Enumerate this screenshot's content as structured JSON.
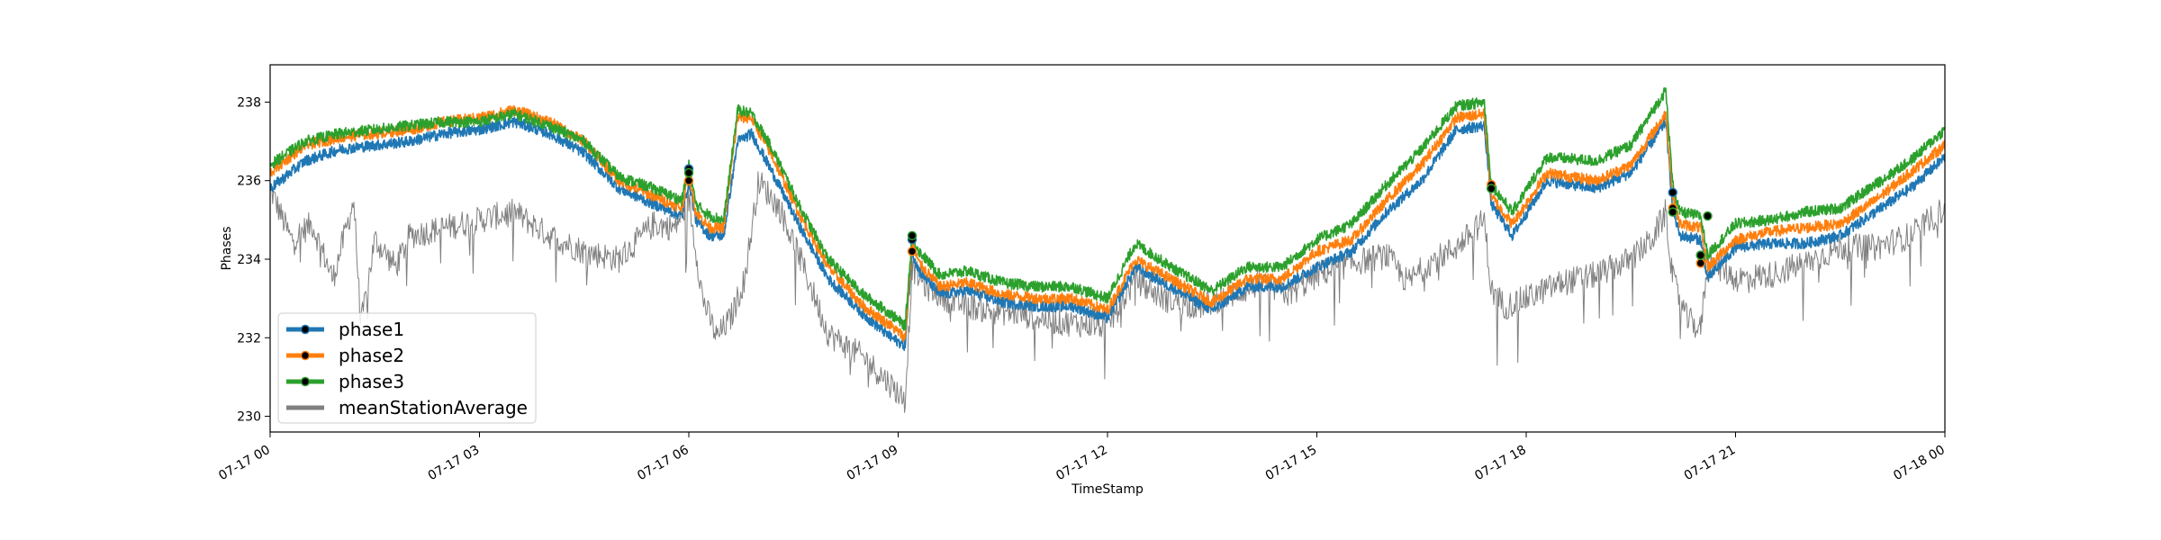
{
  "chart_data": {
    "type": "line",
    "title": "",
    "xlabel": "TimeStamp",
    "ylabel": "Phases",
    "xlim": [
      "07-17 00:00",
      "07-18 00:00"
    ],
    "ylim": [
      229.6,
      238.95
    ],
    "x_ticks": [
      "07-17 00",
      "07-17 03",
      "07-17 06",
      "07-17 09",
      "07-17 12",
      "07-17 15",
      "07-17 18",
      "07-17 21",
      "07-18 00"
    ],
    "y_ticks": [
      230,
      232,
      234,
      236,
      238
    ],
    "grid": false,
    "legend_position": "lower-left",
    "x_unit": "hours since 07-17 00:00",
    "series": [
      {
        "name": "phase1",
        "color": "#1f77b4",
        "x": [
          0,
          0.5,
          1,
          1.5,
          2,
          2.5,
          3,
          3.5,
          4,
          4.5,
          5,
          5.5,
          5.9,
          6,
          6.1,
          6.3,
          6.5,
          6.7,
          6.9,
          7.2,
          7.6,
          8,
          8.5,
          8.9,
          9.1,
          9.2,
          9.3,
          9.6,
          10,
          10.5,
          11,
          11.5,
          12,
          12.4,
          13,
          13.5,
          14,
          14.5,
          15,
          15.5,
          16,
          16.5,
          17,
          17.4,
          17.5,
          17.8,
          18.3,
          19,
          19.5,
          20,
          20.1,
          20.2,
          20.5,
          20.6,
          21,
          21.5,
          22,
          22.5,
          23,
          23.5,
          24
        ],
        "y": [
          235.8,
          236.5,
          236.8,
          236.9,
          237.0,
          237.2,
          237.3,
          237.5,
          237.2,
          236.7,
          235.8,
          235.4,
          235.1,
          236.0,
          235.0,
          234.6,
          234.6,
          237.0,
          237.2,
          236.2,
          234.8,
          233.5,
          232.6,
          232.0,
          231.8,
          234.2,
          233.7,
          233.1,
          233.2,
          232.9,
          232.8,
          232.8,
          232.5,
          233.8,
          233.2,
          232.7,
          233.3,
          233.3,
          233.8,
          234.2,
          235.2,
          236.0,
          237.3,
          237.4,
          235.4,
          234.6,
          236.0,
          235.8,
          236.2,
          237.5,
          235.3,
          234.6,
          234.5,
          233.5,
          234.3,
          234.4,
          234.4,
          234.6,
          235.2,
          235.8,
          236.6
        ],
        "markers": [
          [
            6.0,
            236.3
          ],
          [
            9.2,
            234.5
          ],
          [
            17.5,
            235.8
          ],
          [
            20.1,
            235.7
          ],
          [
            20.5,
            234.1
          ]
        ]
      },
      {
        "name": "phase2",
        "color": "#ff7f0e",
        "x": [
          0,
          0.5,
          1,
          1.5,
          2,
          2.5,
          3,
          3.5,
          4,
          4.5,
          5,
          5.5,
          5.9,
          6,
          6.1,
          6.3,
          6.5,
          6.7,
          6.9,
          7.2,
          7.6,
          8,
          8.5,
          8.9,
          9.1,
          9.2,
          9.3,
          9.6,
          10,
          10.5,
          11,
          11.5,
          12,
          12.4,
          13,
          13.5,
          14,
          14.5,
          15,
          15.5,
          16,
          16.5,
          17,
          17.4,
          17.5,
          17.8,
          18.3,
          19,
          19.5,
          20,
          20.1,
          20.2,
          20.5,
          20.6,
          21,
          21.5,
          22,
          22.5,
          23,
          23.5,
          24
        ],
        "y": [
          236.2,
          236.9,
          237.1,
          237.2,
          237.3,
          237.5,
          237.6,
          237.8,
          237.5,
          237.0,
          236.0,
          235.6,
          235.3,
          236.2,
          235.2,
          234.8,
          234.8,
          237.6,
          237.6,
          236.6,
          235.1,
          233.8,
          232.8,
          232.3,
          232.0,
          234.4,
          233.9,
          233.3,
          233.4,
          233.1,
          233.0,
          233.0,
          232.7,
          234.0,
          233.4,
          232.9,
          233.5,
          233.5,
          234.2,
          234.5,
          235.5,
          236.4,
          237.6,
          237.7,
          235.6,
          234.9,
          236.2,
          236.0,
          236.4,
          237.7,
          235.6,
          234.9,
          234.8,
          233.8,
          234.5,
          234.7,
          234.8,
          234.9,
          235.5,
          236.2,
          236.9
        ],
        "markers": [
          [
            6.0,
            236.0
          ],
          [
            9.2,
            234.2
          ],
          [
            17.5,
            235.9
          ],
          [
            20.1,
            235.3
          ],
          [
            20.5,
            233.9
          ]
        ]
      },
      {
        "name": "phase3",
        "color": "#2ca02c",
        "x": [
          0,
          0.5,
          1,
          1.5,
          2,
          2.5,
          3,
          3.5,
          4,
          4.5,
          5,
          5.5,
          5.9,
          6,
          6.1,
          6.3,
          6.5,
          6.7,
          6.9,
          7.2,
          7.6,
          8,
          8.5,
          8.9,
          9.1,
          9.2,
          9.3,
          9.6,
          10,
          10.5,
          11,
          11.5,
          12,
          12.4,
          13,
          13.5,
          14,
          14.5,
          15,
          15.5,
          16,
          16.5,
          17,
          17.4,
          17.5,
          17.8,
          18.3,
          19,
          19.5,
          20,
          20.1,
          20.2,
          20.5,
          20.6,
          21,
          21.5,
          22,
          22.5,
          23,
          23.5,
          24
        ],
        "y": [
          236.4,
          237.0,
          237.2,
          237.3,
          237.4,
          237.5,
          237.5,
          237.7,
          237.4,
          237.0,
          236.1,
          235.8,
          235.5,
          236.4,
          235.4,
          235.1,
          235.0,
          237.8,
          237.7,
          236.8,
          235.3,
          234.0,
          233.1,
          232.6,
          232.3,
          234.6,
          234.2,
          233.6,
          233.7,
          233.4,
          233.3,
          233.3,
          233.0,
          234.4,
          233.7,
          233.2,
          233.8,
          233.8,
          234.5,
          234.9,
          235.9,
          236.8,
          237.9,
          238.0,
          235.9,
          235.2,
          236.6,
          236.5,
          236.9,
          238.3,
          235.9,
          235.2,
          235.1,
          234.1,
          234.9,
          235.0,
          235.2,
          235.3,
          235.9,
          236.5,
          237.3
        ],
        "markers": [
          [
            6.0,
            236.2
          ],
          [
            9.2,
            234.6
          ],
          [
            17.5,
            235.8
          ],
          [
            20.1,
            235.2
          ],
          [
            20.5,
            234.1
          ],
          [
            20.6,
            235.1
          ]
        ]
      },
      {
        "name": "meanStationAverage",
        "color": "#808080",
        "x": [
          0,
          0.3,
          0.6,
          0.9,
          1.2,
          1.3,
          1.5,
          1.8,
          2,
          2.5,
          3,
          3.5,
          4,
          4.5,
          5,
          5.5,
          5.8,
          6,
          6.2,
          6.4,
          6.6,
          6.8,
          7,
          7.3,
          7.6,
          8,
          8.5,
          8.9,
          9.1,
          9.2,
          9.4,
          9.8,
          10.3,
          10.8,
          11.3,
          12,
          12.4,
          12.8,
          13.3,
          13.8,
          14.2,
          14.6,
          15,
          15.5,
          16,
          16.3,
          16.6,
          17,
          17.4,
          17.5,
          17.7,
          18,
          18.5,
          19,
          19.5,
          19.8,
          20,
          20.1,
          20.3,
          20.5,
          20.6,
          21,
          21.5,
          22,
          22.5,
          23,
          23.5,
          24
        ],
        "y": [
          235.8,
          234.5,
          234.9,
          233.5,
          235.5,
          232.3,
          234.5,
          233.8,
          234.6,
          234.8,
          235.0,
          235.2,
          234.6,
          234.2,
          234.0,
          234.9,
          234.8,
          235.5,
          233.0,
          232.0,
          232.5,
          233.5,
          236.0,
          235.3,
          234.0,
          232.1,
          231.5,
          230.8,
          230.4,
          233.8,
          233.3,
          232.9,
          232.7,
          232.6,
          232.4,
          232.3,
          233.5,
          233.0,
          232.8,
          233.1,
          233.4,
          233.1,
          233.6,
          233.9,
          234.1,
          233.4,
          233.9,
          234.3,
          235.0,
          233.2,
          232.8,
          233.0,
          233.4,
          233.6,
          234.0,
          234.5,
          235.2,
          233.5,
          232.5,
          232.2,
          234.0,
          233.5,
          233.6,
          233.9,
          234.3,
          234.3,
          234.6,
          235.3
        ]
      }
    ]
  }
}
